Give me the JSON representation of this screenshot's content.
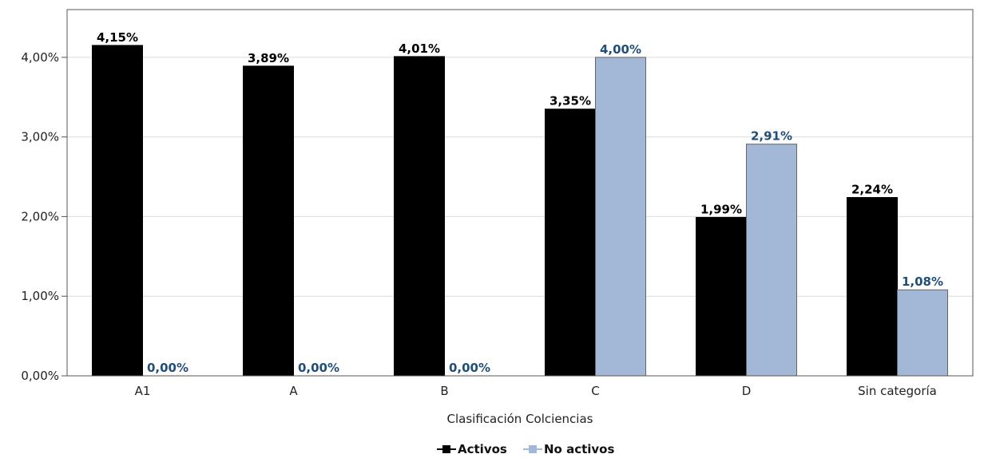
{
  "chart_data": {
    "type": "bar",
    "title": "",
    "xlabel": "Clasificación Colciencias",
    "ylabel": "",
    "categories": [
      "A1",
      "A",
      "B",
      "C",
      "D",
      "Sin categoría"
    ],
    "series": [
      {
        "name": "Activos",
        "color": "#000000",
        "label_color": "#000000",
        "values": [
          4.15,
          3.89,
          4.01,
          3.35,
          1.99,
          2.24
        ],
        "labels": [
          "4,15%",
          "3,89%",
          "4,01%",
          "3,35%",
          "1,99%",
          "2,24%"
        ]
      },
      {
        "name": "No activos",
        "color": "#a3b8d6",
        "label_color": "#1f4e79",
        "values": [
          0.0,
          0.0,
          0.0,
          4.0,
          2.91,
          1.08
        ],
        "labels": [
          "0,00%",
          "0,00%",
          "0,00%",
          "4,00%",
          "2,91%",
          "1,08%"
        ]
      }
    ],
    "ylim": [
      0,
      4.6
    ],
    "yticks": [
      0,
      1,
      2,
      3,
      4
    ],
    "ytick_labels": [
      "0,00%",
      "1,00%",
      "2,00%",
      "3,00%",
      "4,00%"
    ],
    "grid": true,
    "legend_position": "bottom-center"
  }
}
